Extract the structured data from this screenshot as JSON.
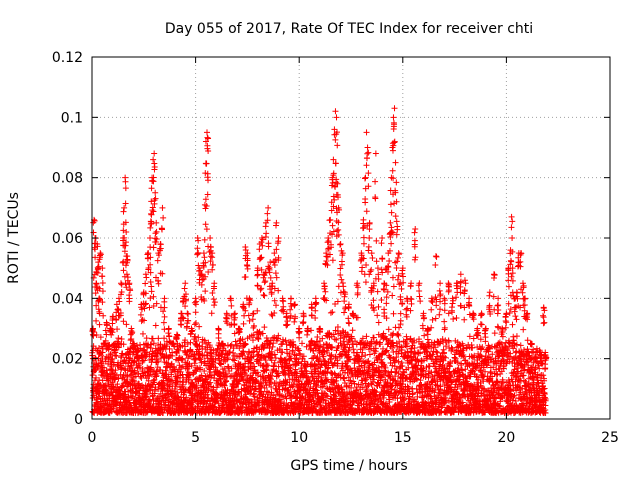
{
  "chart_data": {
    "type": "scatter",
    "title": "Day 055 of 2017, Rate Of TEC Index for receiver chti",
    "xlabel": "GPS time / hours",
    "ylabel": "ROTI / TECUs",
    "xlim": [
      0,
      25
    ],
    "ylim": [
      0,
      0.12
    ],
    "x_ticks": [
      "0",
      "5",
      "10",
      "15",
      "20",
      "25"
    ],
    "y_ticks": [
      "0",
      "0.02",
      "0.04",
      "0.06",
      "0.08",
      "0.1",
      "0.12"
    ],
    "grid": true,
    "marker": "+",
    "color": "#ff0000",
    "series": [
      {
        "points": [
          [
            0.05,
            0.03
          ],
          [
            0.1,
            0.066
          ],
          [
            0.15,
            0.06
          ],
          [
            0.2,
            0.045
          ],
          [
            0.25,
            0.058
          ],
          [
            0.3,
            0.052
          ],
          [
            0.35,
            0.04
          ],
          [
            0.4,
            0.055
          ],
          [
            0.5,
            0.05
          ],
          [
            0.6,
            0.025
          ],
          [
            0.7,
            0.032
          ],
          [
            0.8,
            0.024
          ],
          [
            0.9,
            0.03
          ],
          [
            1.0,
            0.034
          ],
          [
            1.1,
            0.022
          ],
          [
            1.2,
            0.038
          ],
          [
            1.3,
            0.04
          ],
          [
            1.4,
            0.045
          ],
          [
            1.5,
            0.06
          ],
          [
            1.55,
            0.07
          ],
          [
            1.6,
            0.08
          ],
          [
            1.65,
            0.062
          ],
          [
            1.7,
            0.054
          ],
          [
            1.8,
            0.045
          ],
          [
            1.9,
            0.03
          ],
          [
            2.0,
            0.025
          ],
          [
            2.2,
            0.02
          ],
          [
            2.4,
            0.038
          ],
          [
            2.5,
            0.042
          ],
          [
            2.6,
            0.048
          ],
          [
            2.7,
            0.055
          ],
          [
            2.8,
            0.06
          ],
          [
            2.85,
            0.068
          ],
          [
            2.9,
            0.08
          ],
          [
            2.95,
            0.086
          ],
          [
            3.0,
            0.088
          ],
          [
            3.05,
            0.075
          ],
          [
            3.1,
            0.065
          ],
          [
            3.2,
            0.055
          ],
          [
            3.3,
            0.058
          ],
          [
            3.4,
            0.07
          ],
          [
            3.5,
            0.04
          ],
          [
            3.7,
            0.03
          ],
          [
            3.9,
            0.025
          ],
          [
            4.1,
            0.028
          ],
          [
            4.3,
            0.035
          ],
          [
            4.4,
            0.04
          ],
          [
            4.5,
            0.045
          ],
          [
            4.6,
            0.035
          ],
          [
            4.8,
            0.03
          ],
          [
            5.0,
            0.04
          ],
          [
            5.1,
            0.06
          ],
          [
            5.2,
            0.05
          ],
          [
            5.3,
            0.048
          ],
          [
            5.4,
            0.055
          ],
          [
            5.45,
            0.071
          ],
          [
            5.5,
            0.092
          ],
          [
            5.55,
            0.095
          ],
          [
            5.6,
            0.093
          ],
          [
            5.7,
            0.06
          ],
          [
            5.8,
            0.055
          ],
          [
            5.9,
            0.045
          ],
          [
            6.1,
            0.03
          ],
          [
            6.3,
            0.025
          ],
          [
            6.5,
            0.035
          ],
          [
            6.7,
            0.04
          ],
          [
            6.9,
            0.035
          ],
          [
            7.1,
            0.03
          ],
          [
            7.3,
            0.038
          ],
          [
            7.4,
            0.057
          ],
          [
            7.5,
            0.055
          ],
          [
            7.6,
            0.04
          ],
          [
            7.8,
            0.035
          ],
          [
            8.0,
            0.05
          ],
          [
            8.1,
            0.058
          ],
          [
            8.2,
            0.06
          ],
          [
            8.3,
            0.048
          ],
          [
            8.4,
            0.065
          ],
          [
            8.5,
            0.07
          ],
          [
            8.6,
            0.052
          ],
          [
            8.7,
            0.045
          ],
          [
            8.8,
            0.055
          ],
          [
            8.9,
            0.065
          ],
          [
            9.0,
            0.06
          ],
          [
            9.2,
            0.04
          ],
          [
            9.4,
            0.035
          ],
          [
            9.6,
            0.04
          ],
          [
            9.8,
            0.038
          ],
          [
            10.0,
            0.03
          ],
          [
            10.2,
            0.035
          ],
          [
            10.4,
            0.03
          ],
          [
            10.6,
            0.038
          ],
          [
            10.8,
            0.04
          ],
          [
            11.0,
            0.03
          ],
          [
            11.2,
            0.045
          ],
          [
            11.3,
            0.055
          ],
          [
            11.4,
            0.06
          ],
          [
            11.5,
            0.066
          ],
          [
            11.6,
            0.08
          ],
          [
            11.65,
            0.086
          ],
          [
            11.7,
            0.096
          ],
          [
            11.75,
            0.102
          ],
          [
            11.8,
            0.1
          ],
          [
            11.85,
            0.078
          ],
          [
            11.9,
            0.07
          ],
          [
            12.0,
            0.058
          ],
          [
            12.1,
            0.055
          ],
          [
            12.2,
            0.042
          ],
          [
            12.4,
            0.038
          ],
          [
            12.6,
            0.035
          ],
          [
            12.8,
            0.045
          ],
          [
            13.0,
            0.055
          ],
          [
            13.1,
            0.066
          ],
          [
            13.2,
            0.08
          ],
          [
            13.25,
            0.095
          ],
          [
            13.3,
            0.09
          ],
          [
            13.4,
            0.065
          ],
          [
            13.5,
            0.055
          ],
          [
            13.6,
            0.045
          ],
          [
            13.7,
            0.088
          ],
          [
            13.8,
            0.05
          ],
          [
            14.0,
            0.06
          ],
          [
            14.1,
            0.045
          ],
          [
            14.2,
            0.05
          ],
          [
            14.3,
            0.055
          ],
          [
            14.4,
            0.065
          ],
          [
            14.45,
            0.08
          ],
          [
            14.5,
            0.09
          ],
          [
            14.55,
            0.1
          ],
          [
            14.6,
            0.103
          ],
          [
            14.65,
            0.085
          ],
          [
            14.7,
            0.072
          ],
          [
            14.8,
            0.055
          ],
          [
            14.9,
            0.045
          ],
          [
            15.0,
            0.05
          ],
          [
            15.2,
            0.04
          ],
          [
            15.4,
            0.045
          ],
          [
            15.6,
            0.063
          ],
          [
            15.8,
            0.045
          ],
          [
            16.0,
            0.035
          ],
          [
            16.2,
            0.03
          ],
          [
            16.4,
            0.04
          ],
          [
            16.6,
            0.054
          ],
          [
            16.8,
            0.045
          ],
          [
            17.0,
            0.04
          ],
          [
            17.2,
            0.045
          ],
          [
            17.4,
            0.04
          ],
          [
            17.6,
            0.045
          ],
          [
            17.8,
            0.048
          ],
          [
            18.0,
            0.046
          ],
          [
            18.2,
            0.04
          ],
          [
            18.4,
            0.035
          ],
          [
            18.6,
            0.03
          ],
          [
            18.8,
            0.035
          ],
          [
            19.0,
            0.03
          ],
          [
            19.2,
            0.042
          ],
          [
            19.4,
            0.048
          ],
          [
            19.6,
            0.04
          ],
          [
            19.8,
            0.03
          ],
          [
            20.0,
            0.035
          ],
          [
            20.1,
            0.05
          ],
          [
            20.2,
            0.056
          ],
          [
            20.25,
            0.067
          ],
          [
            20.3,
            0.05
          ],
          [
            20.4,
            0.04
          ],
          [
            20.5,
            0.042
          ],
          [
            20.6,
            0.055
          ],
          [
            20.7,
            0.055
          ],
          [
            20.8,
            0.045
          ],
          [
            20.9,
            0.04
          ],
          [
            21.0,
            0.035
          ],
          [
            21.2,
            0.025
          ],
          [
            21.4,
            0.02
          ],
          [
            21.6,
            0.022
          ],
          [
            21.8,
            0.037
          ],
          [
            21.9,
            0.02
          ]
        ],
        "envelope": [
          [
            0.0,
            0.024
          ],
          [
            1.0,
            0.026
          ],
          [
            2.0,
            0.024
          ],
          [
            3.0,
            0.027
          ],
          [
            4.0,
            0.025
          ],
          [
            5.0,
            0.028
          ],
          [
            6.0,
            0.024
          ],
          [
            7.0,
            0.026
          ],
          [
            8.0,
            0.029
          ],
          [
            9.0,
            0.027
          ],
          [
            10.0,
            0.025
          ],
          [
            11.0,
            0.028
          ],
          [
            12.0,
            0.03
          ],
          [
            13.0,
            0.027
          ],
          [
            14.0,
            0.029
          ],
          [
            15.0,
            0.028
          ],
          [
            16.0,
            0.026
          ],
          [
            17.0,
            0.027
          ],
          [
            18.0,
            0.025
          ],
          [
            19.0,
            0.024
          ],
          [
            20.0,
            0.027
          ],
          [
            21.0,
            0.025
          ],
          [
            21.9,
            0.022
          ]
        ],
        "x_range": [
          0,
          21.9
        ],
        "floor": 0.002
      }
    ]
  }
}
